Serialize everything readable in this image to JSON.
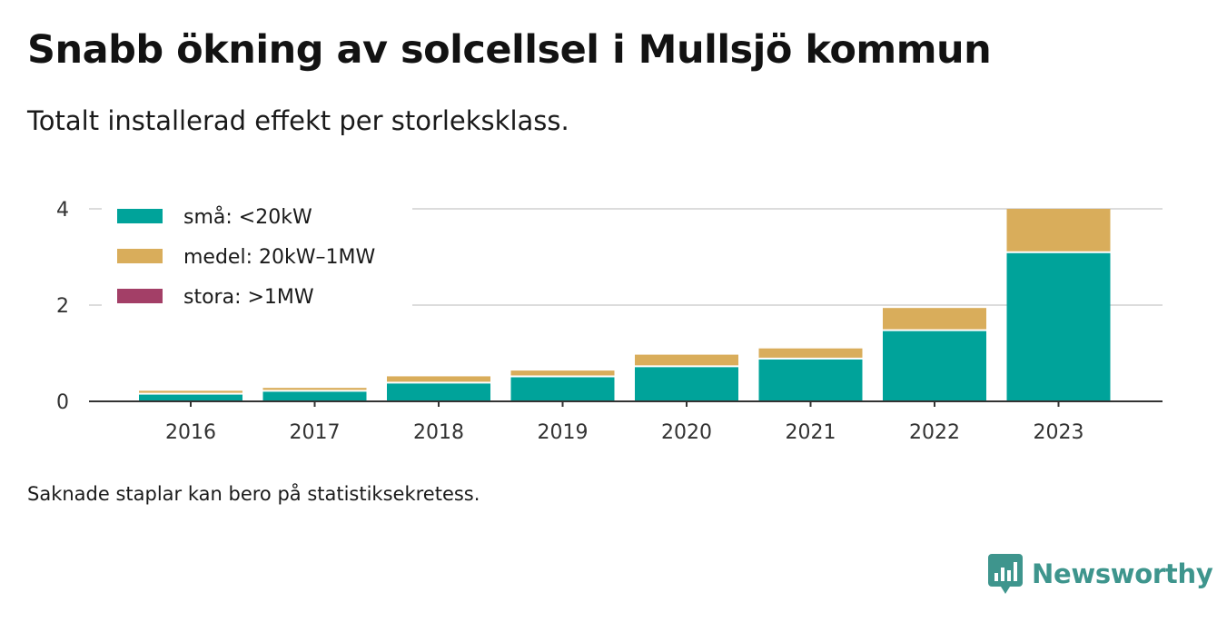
{
  "title": "Snabb ökning av solcellsel i Mullsjö kommun",
  "subtitle": "Totalt installerad effekt per storleksklass.",
  "note": "Saknade staplar kan bero på statistiksekretess.",
  "brand": {
    "name": "Newsworthy",
    "icon": "newsworthy-logo-icon",
    "color": "#3e958d"
  },
  "chart_data": {
    "type": "bar",
    "stacked": true,
    "categories": [
      "2016",
      "2017",
      "2018",
      "2019",
      "2020",
      "2021",
      "2022",
      "2023"
    ],
    "series": [
      {
        "name": "små: <20kW",
        "color": "#00a39a",
        "values": [
          0.14,
          0.2,
          0.37,
          0.5,
          0.71,
          0.87,
          1.46,
          3.08
        ]
      },
      {
        "name": "medel: 20kW–1MW",
        "color": "#d9ad5b",
        "values": [
          0.08,
          0.08,
          0.15,
          0.14,
          0.26,
          0.23,
          0.48,
          0.92
        ]
      },
      {
        "name": "stora: >1MW",
        "color": "#a33f67",
        "values": [
          0,
          0,
          0,
          0,
          0,
          0,
          0,
          0
        ]
      }
    ],
    "yticks": [
      0,
      2,
      4
    ],
    "ylim": [
      0,
      4
    ],
    "grid": true,
    "legend_position": "top-left"
  }
}
